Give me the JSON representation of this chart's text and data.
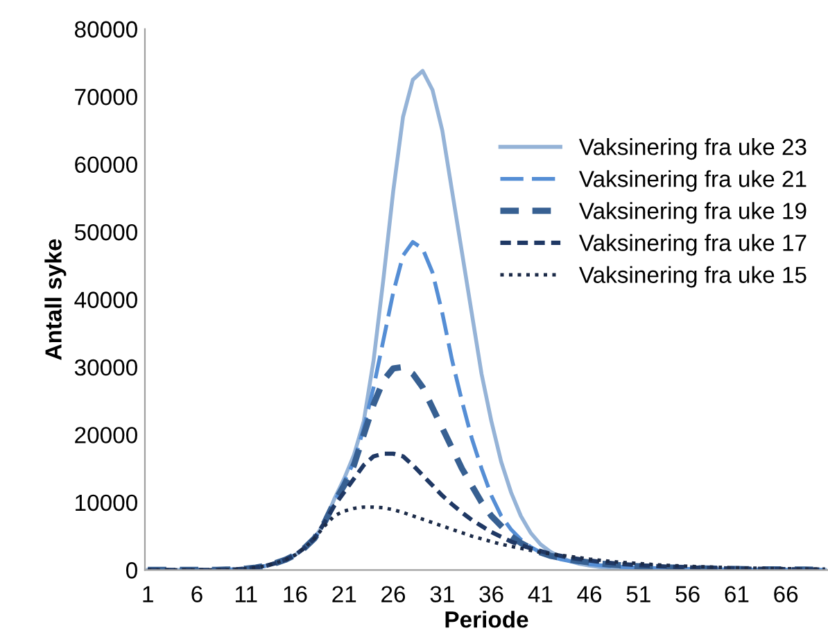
{
  "chart_data": {
    "type": "line",
    "xlabel": "Periode",
    "ylabel": "Antall syke",
    "categories": [
      "1",
      null,
      null,
      null,
      null,
      "6",
      null,
      null,
      null,
      null,
      "11",
      null,
      null,
      null,
      null,
      "16",
      null,
      null,
      null,
      null,
      "21",
      null,
      null,
      null,
      null,
      "26",
      null,
      null,
      null,
      null,
      "31",
      null,
      null,
      null,
      null,
      "36",
      null,
      null,
      null,
      null,
      "41",
      null,
      null,
      null,
      null,
      "46",
      null,
      null,
      null,
      null,
      "51",
      null,
      null,
      null,
      null,
      "56",
      null,
      null,
      null,
      null,
      "61",
      null,
      null,
      null,
      null,
      "66",
      null,
      null,
      null,
      null
    ],
    "series": [
      {
        "name": "Vaksinering fra uke 23",
        "color": "#95b3d7",
        "line_style": "solid",
        "values": [
          0,
          0,
          0,
          0,
          0,
          0,
          0,
          0,
          50,
          100,
          200,
          350,
          600,
          1000,
          1500,
          2200,
          3300,
          4700,
          7000,
          10500,
          13500,
          17000,
          22000,
          31000,
          43000,
          56000,
          67000,
          72500,
          73800,
          71000,
          65000,
          56000,
          47000,
          38000,
          29000,
          22000,
          16000,
          11500,
          8000,
          5500,
          3800,
          2700,
          1900,
          1300,
          900,
          650,
          450,
          320,
          230,
          160,
          120,
          90,
          70,
          50,
          40,
          30,
          20,
          20,
          10,
          10,
          0,
          0,
          0,
          0,
          0,
          0,
          0,
          0,
          0,
          0
        ]
      },
      {
        "name": "Vaksinering fra uke 21",
        "color": "#558ed5",
        "line_style": "dashed",
        "values": [
          0,
          0,
          0,
          0,
          0,
          0,
          0,
          0,
          50,
          100,
          200,
          350,
          600,
          1000,
          1500,
          2200,
          3300,
          4700,
          7000,
          10000,
          13000,
          16000,
          21000,
          27000,
          34000,
          41000,
          46500,
          48500,
          47500,
          44000,
          38000,
          31000,
          25000,
          19500,
          15000,
          11000,
          8000,
          6000,
          4500,
          3400,
          2600,
          2000,
          1600,
          1300,
          1050,
          850,
          700,
          580,
          480,
          400,
          340,
          290,
          250,
          210,
          180,
          150,
          130,
          110,
          95,
          80,
          70,
          60,
          50,
          40,
          35,
          30,
          25,
          20,
          15,
          10
        ]
      },
      {
        "name": "Vaksinering fra uke 19",
        "color": "#376092",
        "line_style": "dashed",
        "values": [
          0,
          0,
          0,
          0,
          0,
          0,
          0,
          0,
          50,
          100,
          200,
          350,
          600,
          1000,
          1500,
          2200,
          3300,
          4700,
          7000,
          10000,
          12500,
          15500,
          20000,
          24500,
          28000,
          29800,
          30000,
          29000,
          27000,
          24000,
          21000,
          18000,
          15000,
          12500,
          10000,
          8000,
          6500,
          5000,
          4000,
          3200,
          2600,
          2100,
          1800,
          1500,
          1300,
          1100,
          950,
          820,
          710,
          620,
          540,
          470,
          410,
          360,
          310,
          270,
          240,
          210,
          180,
          160,
          140,
          120,
          105,
          90,
          80,
          70,
          60,
          50,
          45,
          40
        ]
      },
      {
        "name": "Vaksinering fra uke 17",
        "color": "#1f3864",
        "line_style": "dashed",
        "values": [
          0,
          0,
          0,
          0,
          0,
          0,
          0,
          0,
          50,
          100,
          200,
          350,
          600,
          1000,
          1500,
          2200,
          3300,
          4700,
          7000,
          9500,
          11500,
          13500,
          15500,
          16800,
          17200,
          17200,
          16800,
          15500,
          14000,
          12500,
          11000,
          9700,
          8500,
          7400,
          6500,
          5600,
          4900,
          4200,
          3700,
          3200,
          2800,
          2400,
          2100,
          1800,
          1600,
          1400,
          1200,
          1050,
          900,
          800,
          700,
          620,
          550,
          490,
          430,
          380,
          340,
          300,
          270,
          240,
          210,
          190,
          170,
          150,
          130,
          120,
          100,
          90,
          80,
          70
        ]
      },
      {
        "name": "Vaksinering fra uke 15",
        "color": "#1c2b48",
        "line_style": "dotted",
        "values": [
          0,
          0,
          0,
          0,
          0,
          0,
          0,
          0,
          50,
          100,
          200,
          350,
          600,
          1000,
          1500,
          2200,
          3300,
          4700,
          6500,
          8000,
          8700,
          9100,
          9300,
          9300,
          9200,
          8900,
          8500,
          8000,
          7500,
          7000,
          6500,
          6000,
          5500,
          5000,
          4600,
          4200,
          3800,
          3500,
          3200,
          2900,
          2600,
          2400,
          2200,
          2000,
          1800,
          1600,
          1450,
          1300,
          1150,
          1050,
          950,
          850,
          760,
          680,
          610,
          550,
          490,
          440,
          400,
          360,
          320,
          290,
          260,
          230,
          210,
          190,
          170,
          150,
          140,
          120
        ]
      }
    ],
    "ylim": [
      0,
      80000
    ],
    "yticks": [
      0,
      10000,
      20000,
      30000,
      40000,
      50000,
      60000,
      70000,
      80000
    ],
    "grid": false,
    "legend": "right"
  }
}
